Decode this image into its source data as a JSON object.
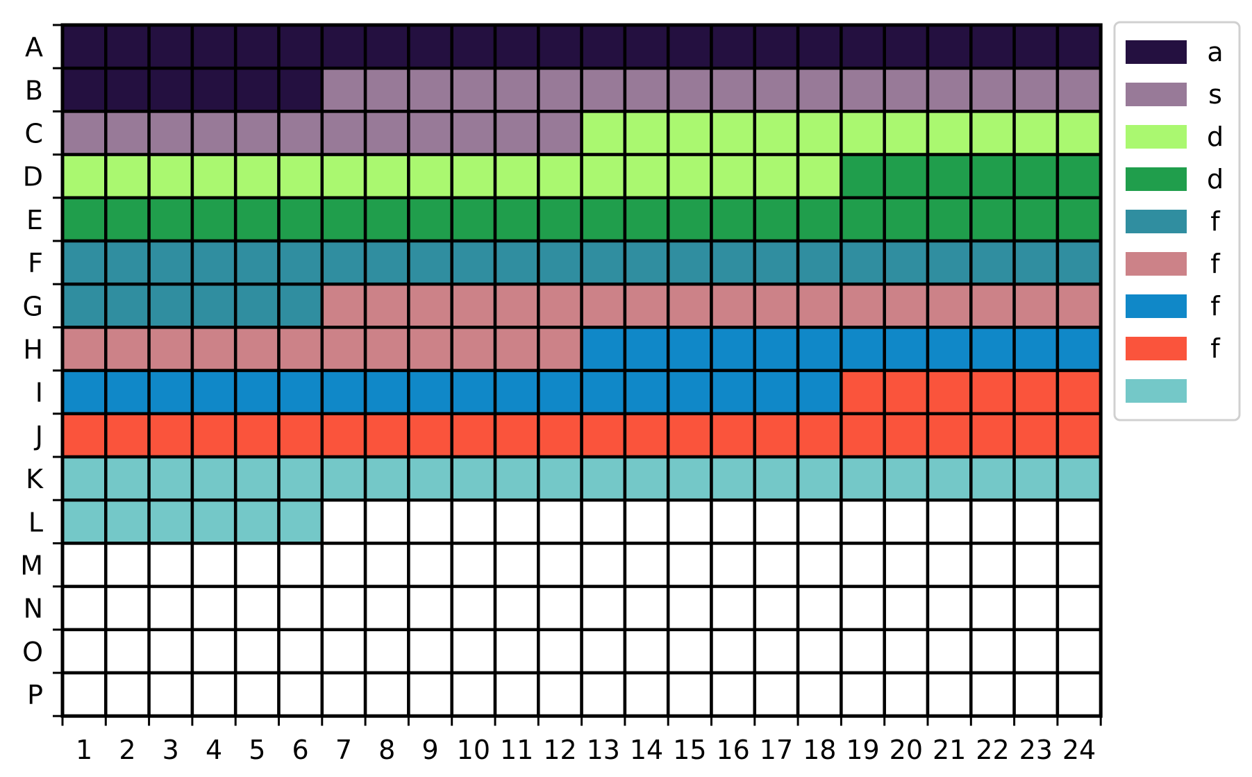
{
  "chart_data": {
    "type": "heatmap",
    "title": "",
    "rows": [
      "A",
      "B",
      "C",
      "D",
      "E",
      "F",
      "G",
      "H",
      "I",
      "J",
      "K",
      "L",
      "M",
      "N",
      "O",
      "P"
    ],
    "columns": [
      "1",
      "2",
      "3",
      "4",
      "5",
      "6",
      "7",
      "8",
      "9",
      "10",
      "11",
      "12",
      "13",
      "14",
      "15",
      "16",
      "17",
      "18",
      "19",
      "20",
      "21",
      "22",
      "23",
      "24"
    ],
    "groups": [
      {
        "label": "a",
        "color": "#241040",
        "wells": 30
      },
      {
        "label": "s",
        "color": "#987a98",
        "wells": 30
      },
      {
        "label": "d",
        "color": "#aaf870",
        "wells": 30
      },
      {
        "label": "d",
        "color": "#209e4c",
        "wells": 30
      },
      {
        "label": "f",
        "color": "#308ea0",
        "wells": 30
      },
      {
        "label": "f",
        "color": "#cc8288",
        "wells": 30
      },
      {
        "label": "f",
        "color": "#1088c8",
        "wells": 30
      },
      {
        "label": "f",
        "color": "#fa543c",
        "wells": 30
      },
      {
        "label": "",
        "color": "#74c8c8",
        "wells": 30
      }
    ],
    "empty_color": "#ffffff",
    "fill_order": "row-major",
    "legend_position": "right"
  }
}
